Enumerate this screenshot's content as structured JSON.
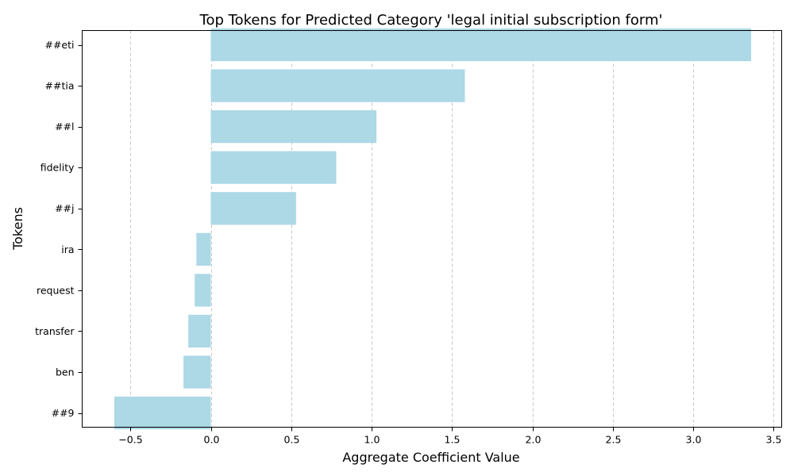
{
  "chart_data": {
    "type": "bar",
    "orientation": "horizontal",
    "title": "Top Tokens for Predicted Category 'legal initial subscription form'",
    "xlabel": "Aggregate Coefficient Value",
    "ylabel": "Tokens",
    "categories": [
      "##eti",
      "##tia",
      "##l",
      "fidelity",
      "##j",
      "ira",
      "request",
      "transfer",
      "ben",
      "##9"
    ],
    "values": [
      3.36,
      1.58,
      1.03,
      0.78,
      0.53,
      -0.09,
      -0.1,
      -0.14,
      -0.17,
      -0.6
    ],
    "xlim": [
      -0.8,
      3.55
    ],
    "xticks": [
      -0.5,
      0.0,
      0.5,
      1.0,
      1.5,
      2.0,
      2.5,
      3.0,
      3.5
    ],
    "xtick_labels": [
      "−0.5",
      "0.0",
      "0.5",
      "1.0",
      "1.5",
      "2.0",
      "2.5",
      "3.0",
      "3.5"
    ],
    "grid": "x-dashed",
    "bar_color": "#add8e6",
    "grid_color": "#c8c8c8"
  }
}
